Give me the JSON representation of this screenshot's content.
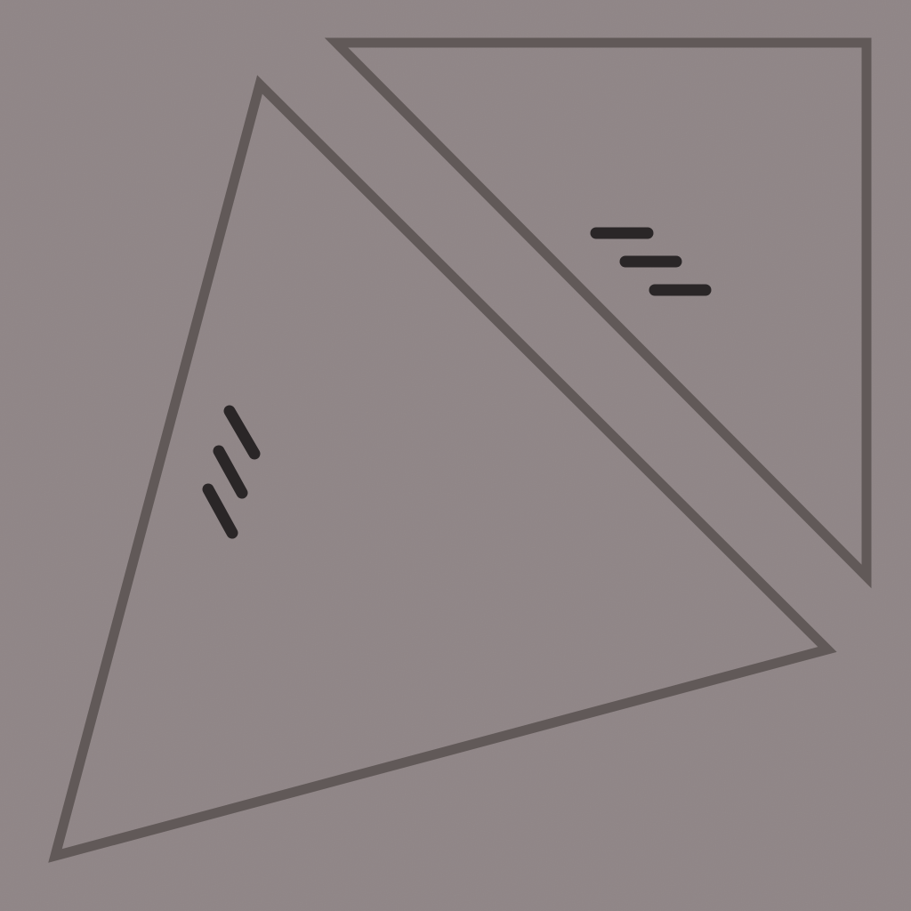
{
  "diagram": {
    "description_type": "geometry-triangles",
    "background_color": "#8F8586",
    "outline_color": "#615958",
    "tick_color": "#2A2627",
    "shapes": [
      {
        "id": "left-triangle",
        "kind": "triangle",
        "tick_mark_count": 3
      },
      {
        "id": "right-triangle",
        "kind": "right-triangle",
        "tick_mark_count": 3
      }
    ]
  }
}
